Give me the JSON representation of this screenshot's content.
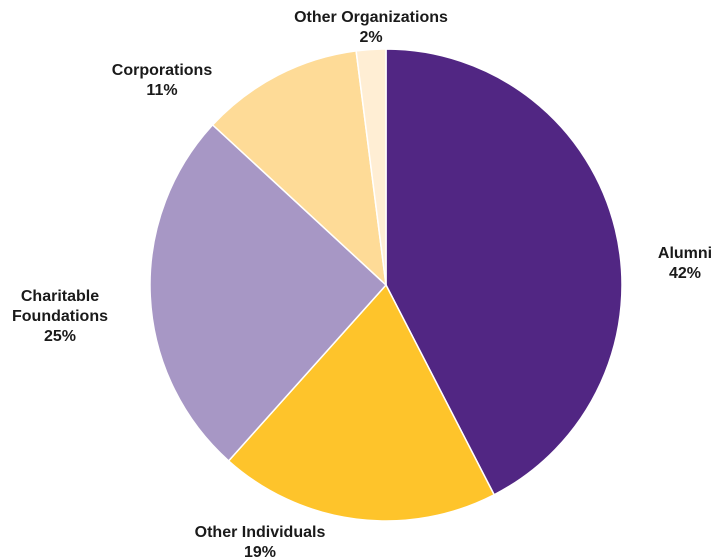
{
  "chart_data": {
    "type": "pie",
    "title": "",
    "slices": [
      {
        "label_lines": [
          "Alumni"
        ],
        "percent_label": "42%",
        "value": 42,
        "color": "#512683"
      },
      {
        "label_lines": [
          "Other Individuals"
        ],
        "percent_label": "19%",
        "value": 19,
        "color": "#FEC42B"
      },
      {
        "label_lines": [
          "Charitable",
          "Foundations"
        ],
        "percent_label": "25%",
        "value": 25,
        "color": "#A797C5"
      },
      {
        "label_lines": [
          "Corporations"
        ],
        "percent_label": "11%",
        "value": 11,
        "color": "#FEDB97"
      },
      {
        "label_lines": [
          "Other Organizations"
        ],
        "percent_label": "2%",
        "value": 2,
        "color": "#FFEED4"
      }
    ],
    "start": "12 o'clock",
    "direction": "clockwise",
    "legend": "none",
    "labels": "outside"
  }
}
